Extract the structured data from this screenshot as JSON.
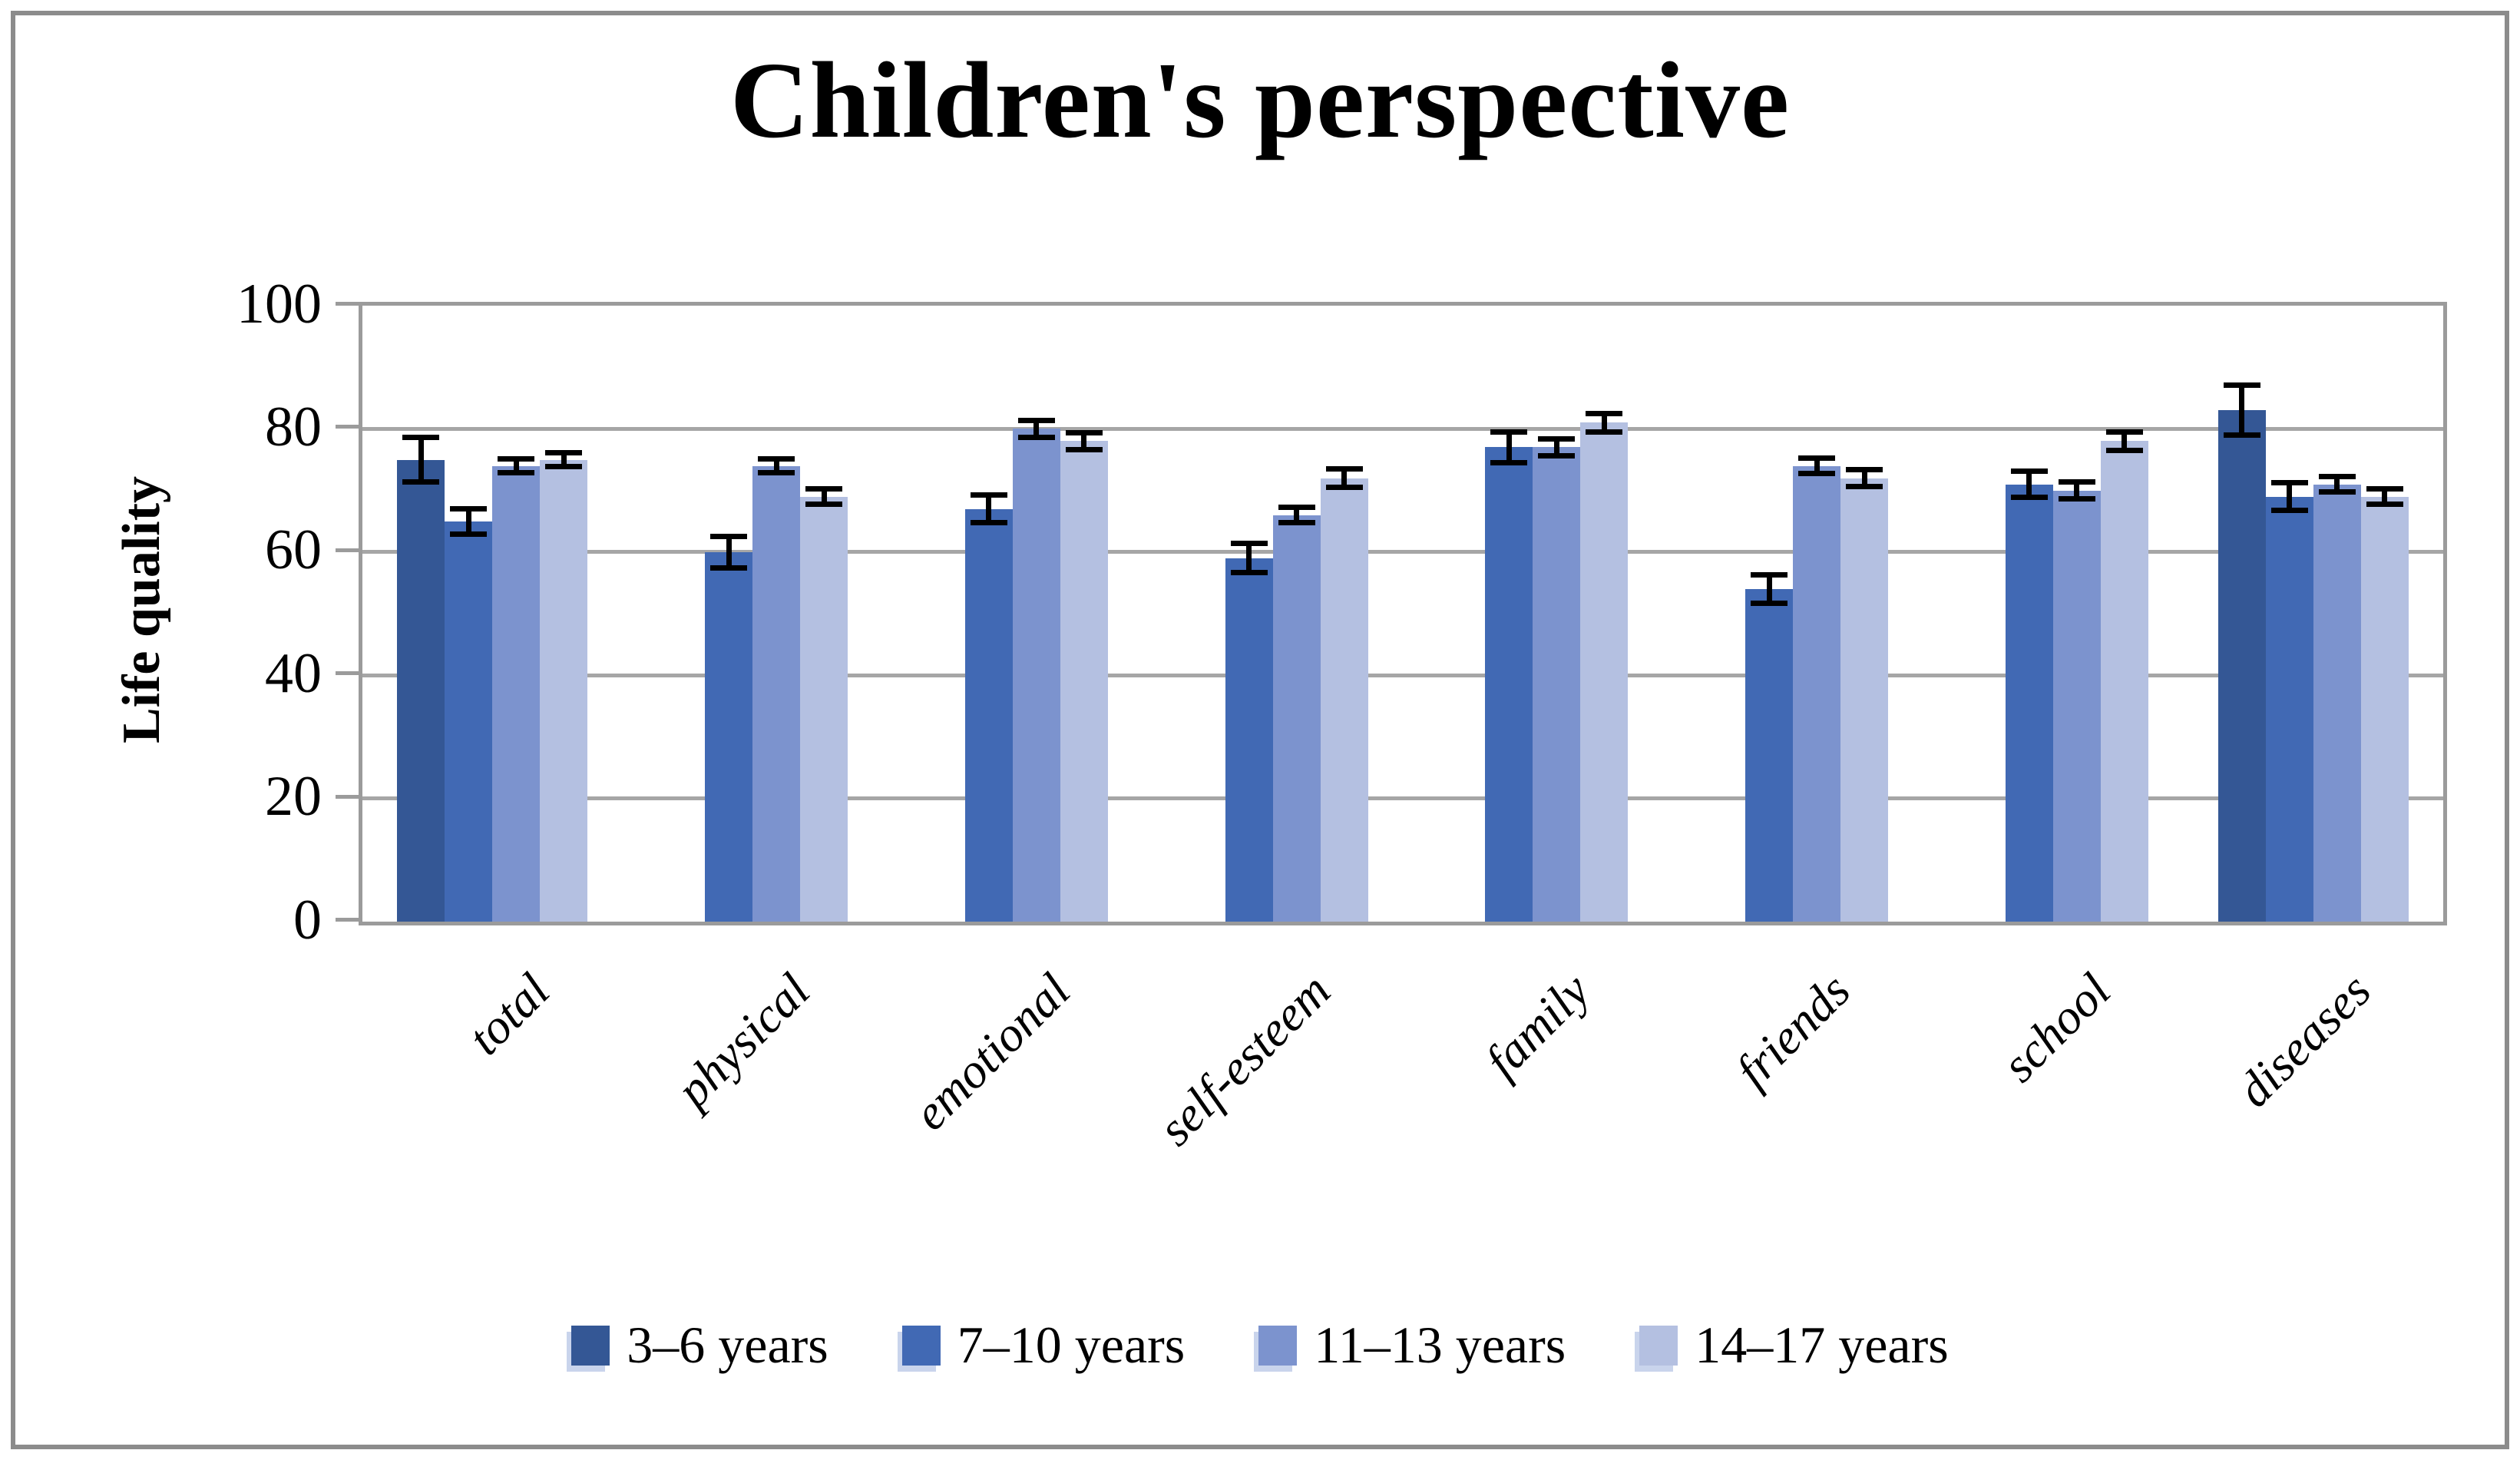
{
  "chart_data": {
    "type": "bar",
    "title": "Children's perspective",
    "ylabel": "Life quality",
    "xlabel": "",
    "ylim": [
      0,
      100
    ],
    "y_ticks": [
      0,
      20,
      40,
      60,
      80,
      100
    ],
    "grid": true,
    "legend_position": "bottom",
    "categories": [
      "total",
      "physical",
      "emotional",
      "self-esteem",
      "family",
      "friends",
      "school",
      "diseases"
    ],
    "series": [
      {
        "name": "3–6 years",
        "color": "#345795",
        "values": [
          75,
          null,
          null,
          null,
          null,
          null,
          null,
          83
        ],
        "errors": [
          4,
          null,
          null,
          null,
          null,
          null,
          null,
          4.5
        ]
      },
      {
        "name": "7–10 years",
        "color": "#4169B4",
        "values": [
          65,
          60,
          67,
          59,
          77,
          54,
          71,
          69
        ],
        "errors": [
          2.5,
          3,
          2.7,
          2.8,
          2.9,
          2.7,
          2.6,
          2.7
        ]
      },
      {
        "name": "11–13 years",
        "color": "#7C93CE",
        "values": [
          74,
          74,
          80,
          66,
          77,
          74,
          70,
          71
        ],
        "errors": [
          1.5,
          1.5,
          1.8,
          1.7,
          1.8,
          1.7,
          1.8,
          1.7
        ]
      },
      {
        "name": "14–17 years",
        "color": "#B4C0E1",
        "values": [
          75,
          69,
          78,
          72,
          81,
          72,
          78,
          69
        ],
        "errors": [
          1.5,
          1.7,
          1.8,
          1.9,
          1.9,
          1.8,
          1.9,
          1.7
        ]
      }
    ],
    "error_bar_color": "#000000",
    "gridline_color": "#A6A6A6",
    "axis_color": "#9B9B9B",
    "frame_color": "#8C8C8C"
  }
}
